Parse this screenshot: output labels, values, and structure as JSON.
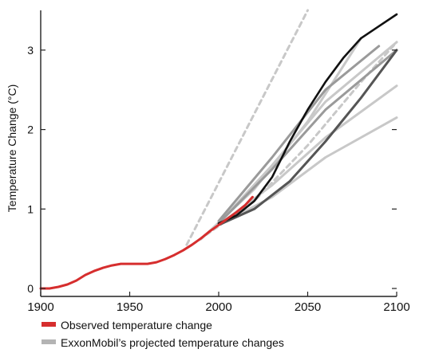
{
  "chart_data": {
    "type": "line",
    "title": "",
    "xlabel": "",
    "ylabel": "Temperature Change (°C)",
    "xlim": [
      1900,
      2100
    ],
    "ylim": [
      -0.1,
      3.5
    ],
    "x_ticks": [
      1900,
      1950,
      2000,
      2050,
      2100
    ],
    "x_tick_labels": [
      "1900",
      "1950",
      "2000",
      "2050",
      "2100"
    ],
    "y_ticks": [
      0,
      1,
      2,
      3
    ],
    "y_tick_labels": [
      "0",
      "1",
      "2",
      "3"
    ],
    "grid": false,
    "legend_position": "bottom-left",
    "colors": {
      "observed": "#d62e2e",
      "projection_light": "#c8c8c8",
      "projection_mid": "#9a9a9a",
      "projection_dark": "#555555",
      "projection_black": "#111111"
    },
    "legend": [
      {
        "label": "Observed temperature change",
        "color": "#d62e2e"
      },
      {
        "label": "ExxonMobil’s projected temperature changes",
        "color": "#b4b4b4"
      }
    ],
    "series": [
      {
        "name": "Observed temperature change",
        "role": "observed",
        "style": "solid",
        "x": [
          1900,
          1905,
          1910,
          1915,
          1920,
          1925,
          1930,
          1935,
          1940,
          1945,
          1950,
          1955,
          1960,
          1965,
          1970,
          1975,
          1980,
          1985,
          1990,
          1995,
          2000,
          2005,
          2010,
          2015,
          2019
        ],
        "y": [
          0.0,
          0.0,
          0.02,
          0.05,
          0.1,
          0.17,
          0.22,
          0.26,
          0.29,
          0.31,
          0.31,
          0.31,
          0.31,
          0.33,
          0.37,
          0.42,
          0.48,
          0.55,
          0.63,
          0.72,
          0.8,
          0.88,
          0.96,
          1.05,
          1.15
        ]
      },
      {
        "role": "projection",
        "tone": "light",
        "style": "dashed",
        "x": [
          1982,
          2050
        ],
        "y": [
          0.55,
          3.5
        ]
      },
      {
        "role": "projection",
        "tone": "light",
        "style": "dashed",
        "x": [
          1985,
          2020,
          2050,
          2080,
          2100
        ],
        "y": [
          0.55,
          1.1,
          1.8,
          2.6,
          3.1
        ]
      },
      {
        "role": "projection",
        "tone": "light",
        "style": "solid",
        "x": [
          1990,
          2020,
          2050,
          2080
        ],
        "y": [
          0.62,
          1.25,
          2.1,
          3.15
        ]
      },
      {
        "role": "projection",
        "tone": "light",
        "style": "solid",
        "x": [
          2000,
          2030,
          2060,
          2100
        ],
        "y": [
          0.8,
          1.15,
          1.65,
          2.15
        ]
      },
      {
        "role": "projection",
        "tone": "light",
        "style": "solid",
        "x": [
          2000,
          2030,
          2060,
          2100
        ],
        "y": [
          0.8,
          1.3,
          1.9,
          2.55
        ]
      },
      {
        "role": "projection",
        "tone": "light",
        "style": "solid",
        "x": [
          2000,
          2030,
          2060,
          2100
        ],
        "y": [
          0.82,
          1.55,
          2.35,
          3.1
        ]
      },
      {
        "role": "projection",
        "tone": "mid",
        "style": "solid",
        "x": [
          2000,
          2030,
          2060,
          2100
        ],
        "y": [
          0.82,
          1.5,
          2.25,
          3.0
        ]
      },
      {
        "role": "projection",
        "tone": "mid",
        "style": "solid",
        "x": [
          2000,
          2030,
          2060,
          2090
        ],
        "y": [
          0.85,
          1.65,
          2.5,
          3.05
        ]
      },
      {
        "role": "projection",
        "tone": "dark",
        "style": "solid",
        "x": [
          2000,
          2020,
          2040,
          2060,
          2080,
          2100
        ],
        "y": [
          0.8,
          1.0,
          1.35,
          1.85,
          2.4,
          3.0
        ]
      },
      {
        "role": "projection",
        "tone": "black",
        "style": "solid",
        "x": [
          2000,
          2010,
          2020,
          2030,
          2040,
          2050,
          2060,
          2070,
          2080,
          2090,
          2100
        ],
        "y": [
          0.82,
          0.92,
          1.1,
          1.4,
          1.85,
          2.25,
          2.6,
          2.9,
          3.15,
          3.3,
          3.45
        ]
      }
    ]
  }
}
